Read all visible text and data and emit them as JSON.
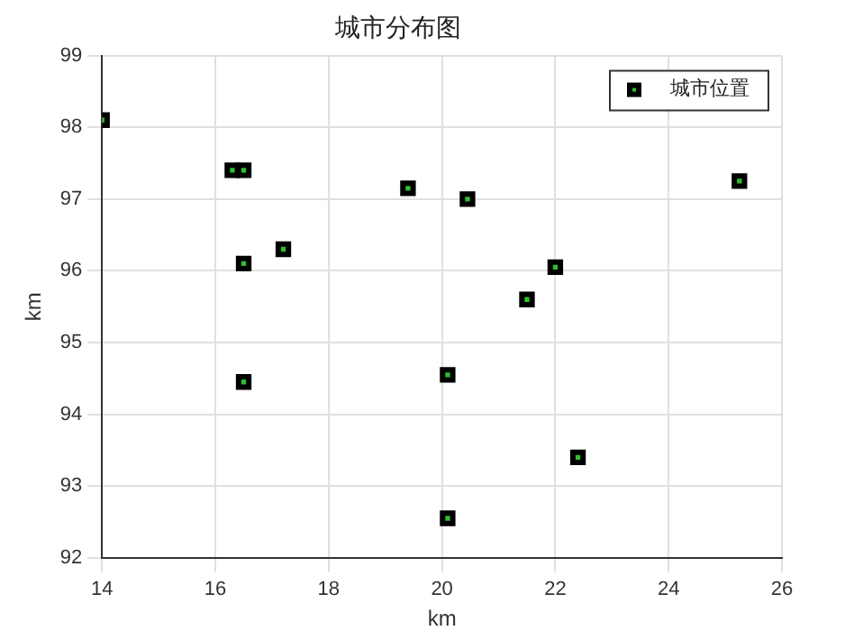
{
  "chart_data": {
    "type": "scatter",
    "title": "城市分布图",
    "xlabel": "km",
    "ylabel": "km",
    "x": [
      14.0,
      16.3,
      16.5,
      16.5,
      17.2,
      19.4,
      20.45,
      22.0,
      21.5,
      25.25,
      16.5,
      20.1,
      20.1,
      22.4
    ],
    "series": [
      {
        "name": "城市位置",
        "color": "#000000",
        "values": [
          98.1,
          97.4,
          97.4,
          96.1,
          96.3,
          97.15,
          97.0,
          96.05,
          95.6,
          97.25,
          94.45,
          94.55,
          92.55,
          93.4
        ]
      }
    ],
    "xlim": [
      14,
      26
    ],
    "xticks": [
      14,
      16,
      18,
      20,
      22,
      24,
      26
    ],
    "ylim": [
      92,
      99
    ],
    "yticks": [
      92,
      93,
      94,
      95,
      96,
      97,
      98,
      99
    ],
    "grid": true,
    "legend": "top right",
    "marker": "square"
  }
}
